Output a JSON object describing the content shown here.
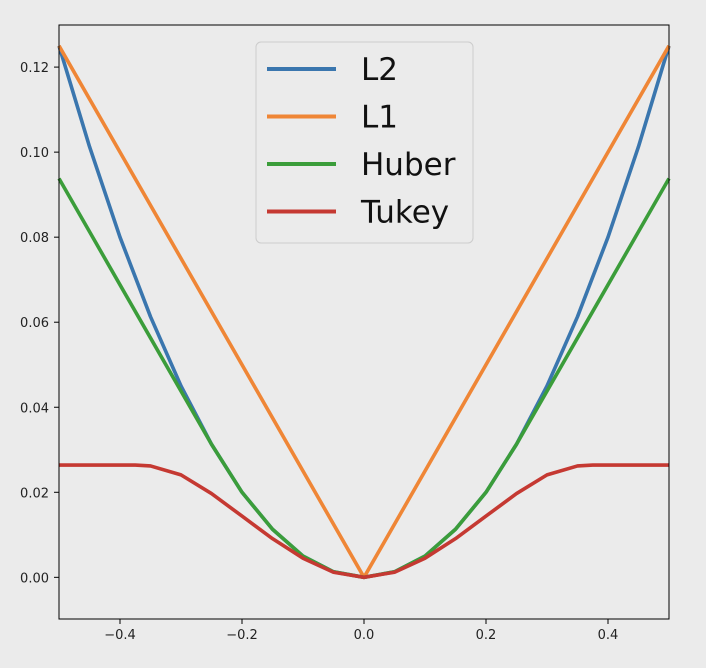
{
  "chart_data": {
    "type": "line",
    "x_range": [
      -0.5,
      0.5
    ],
    "ylim": [
      -0.0098,
      0.1299
    ],
    "x_ticks": [
      -0.4,
      -0.2,
      0.0,
      0.2,
      0.4
    ],
    "x_tick_labels": [
      "−0.4",
      "−0.2",
      "0.0",
      "0.2",
      "0.4"
    ],
    "y_ticks": [
      0.0,
      0.02,
      0.04,
      0.06,
      0.08,
      0.1,
      0.12
    ],
    "y_tick_labels": [
      "0.00",
      "0.02",
      "0.04",
      "0.06",
      "0.08",
      "0.10",
      "0.12"
    ],
    "grid": false,
    "legend_position": "upper-center",
    "background": "#ebebeb",
    "series": [
      {
        "name": "L2",
        "color": "#3a76ae",
        "x": [
          -0.5,
          -0.45,
          -0.4,
          -0.35,
          -0.3,
          -0.25,
          -0.2,
          -0.15,
          -0.1,
          -0.05,
          0.0,
          0.05,
          0.1,
          0.15,
          0.2,
          0.25,
          0.3,
          0.35,
          0.4,
          0.45,
          0.5
        ],
        "y": [
          0.125,
          0.1013,
          0.08,
          0.0613,
          0.045,
          0.0313,
          0.02,
          0.0113,
          0.005,
          0.0013,
          0.0,
          0.0013,
          0.005,
          0.0113,
          0.02,
          0.0313,
          0.045,
          0.0613,
          0.08,
          0.1013,
          0.125
        ]
      },
      {
        "name": "L1",
        "color": "#ef8636",
        "x": [
          -0.5,
          0.0,
          0.5
        ],
        "y": [
          0.125,
          0.0,
          0.125
        ]
      },
      {
        "name": "Huber",
        "color": "#3b9d3a",
        "x": [
          -0.5,
          -0.45,
          -0.4,
          -0.35,
          -0.3,
          -0.25,
          -0.2,
          -0.15,
          -0.1,
          -0.05,
          0.0,
          0.05,
          0.1,
          0.15,
          0.2,
          0.25,
          0.3,
          0.35,
          0.4,
          0.45,
          0.5
        ],
        "y": [
          0.0938,
          0.0813,
          0.0688,
          0.0563,
          0.0438,
          0.0313,
          0.02,
          0.0113,
          0.005,
          0.0013,
          0.0,
          0.0013,
          0.005,
          0.0113,
          0.02,
          0.0313,
          0.0438,
          0.0563,
          0.0688,
          0.0813,
          0.0938
        ]
      },
      {
        "name": "Tukey",
        "color": "#c53932",
        "x": [
          -0.5,
          -0.45,
          -0.4,
          -0.375,
          -0.35,
          -0.3,
          -0.25,
          -0.2,
          -0.15,
          -0.1,
          -0.05,
          0.0,
          0.05,
          0.1,
          0.15,
          0.2,
          0.25,
          0.3,
          0.35,
          0.375,
          0.4,
          0.45,
          0.5
        ],
        "y": [
          0.0264,
          0.0264,
          0.0264,
          0.0264,
          0.0262,
          0.0241,
          0.0197,
          0.0144,
          0.0091,
          0.0045,
          0.0012,
          0.0,
          0.0012,
          0.0045,
          0.0091,
          0.0144,
          0.0197,
          0.0241,
          0.0262,
          0.0264,
          0.0264,
          0.0264,
          0.0264
        ]
      }
    ]
  }
}
